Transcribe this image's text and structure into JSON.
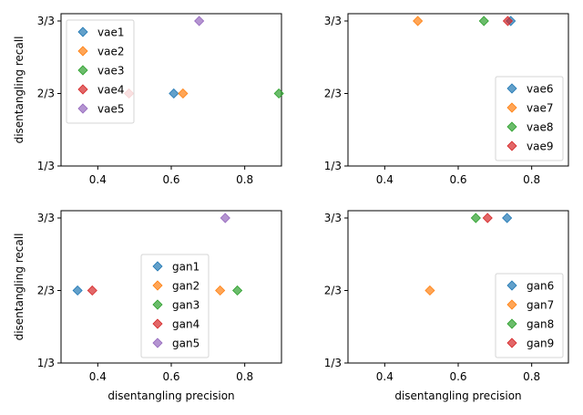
{
  "chart_data": [
    {
      "type": "scatter",
      "xlabel": "",
      "ylabel": "disentangling recall",
      "xlim": [
        0.3,
        0.9
      ],
      "ylim": [
        0.3333,
        1.0
      ],
      "xticks": [
        0.4,
        0.6,
        0.8
      ],
      "xtick_labels": [
        "0.4",
        "0.6",
        "0.8"
      ],
      "yticks": [
        0.3333,
        0.6667,
        1.0
      ],
      "ytick_labels": [
        "1/3",
        "2/3",
        "3/3"
      ],
      "legend_position": "upper-left",
      "series": [
        {
          "name": "vae1",
          "color": "#1f77b4",
          "x": [
            0.607
          ],
          "y": [
            0.6667
          ]
        },
        {
          "name": "vae2",
          "color": "#ff7f0e",
          "x": [
            0.632
          ],
          "y": [
            0.6667
          ]
        },
        {
          "name": "vae3",
          "color": "#2ca02c",
          "x": [
            0.893
          ],
          "y": [
            0.6667
          ]
        },
        {
          "name": "vae4",
          "color": "#d62728",
          "x": [
            0.485
          ],
          "y": [
            0.6667
          ]
        },
        {
          "name": "vae5",
          "color": "#9467bd",
          "x": [
            0.676
          ],
          "y": [
            1.0
          ]
        }
      ]
    },
    {
      "type": "scatter",
      "xlabel": "",
      "ylabel": "",
      "xlim": [
        0.3,
        0.9
      ],
      "ylim": [
        0.3333,
        1.0
      ],
      "xticks": [
        0.4,
        0.6,
        0.8
      ],
      "xtick_labels": [
        "0.4",
        "0.6",
        "0.8"
      ],
      "yticks": [
        0.3333,
        0.6667,
        1.0
      ],
      "ytick_labels": [
        "1/3",
        "2/3",
        "3/3"
      ],
      "legend_position": "lower-right",
      "series": [
        {
          "name": "vae6",
          "color": "#1f77b4",
          "x": [
            0.743
          ],
          "y": [
            1.0
          ]
        },
        {
          "name": "vae7",
          "color": "#ff7f0e",
          "x": [
            0.49
          ],
          "y": [
            1.0
          ]
        },
        {
          "name": "vae8",
          "color": "#2ca02c",
          "x": [
            0.67
          ],
          "y": [
            1.0
          ]
        },
        {
          "name": "vae9",
          "color": "#d62728",
          "x": [
            0.735
          ],
          "y": [
            1.0
          ]
        }
      ]
    },
    {
      "type": "scatter",
      "xlabel": "disentangling precision",
      "ylabel": "disentangling recall",
      "xlim": [
        0.3,
        0.9
      ],
      "ylim": [
        0.3333,
        1.0
      ],
      "xticks": [
        0.4,
        0.6,
        0.8
      ],
      "xtick_labels": [
        "0.4",
        "0.6",
        "0.8"
      ],
      "yticks": [
        0.3333,
        0.6667,
        1.0
      ],
      "ytick_labels": [
        "1/3",
        "2/3",
        "3/3"
      ],
      "legend_position": "lower-center",
      "series": [
        {
          "name": "gan1",
          "color": "#1f77b4",
          "x": [
            0.345
          ],
          "y": [
            0.6667
          ]
        },
        {
          "name": "gan2",
          "color": "#ff7f0e",
          "x": [
            0.733
          ],
          "y": [
            0.6667
          ]
        },
        {
          "name": "gan3",
          "color": "#2ca02c",
          "x": [
            0.78
          ],
          "y": [
            0.6667
          ]
        },
        {
          "name": "gan4",
          "color": "#d62728",
          "x": [
            0.385
          ],
          "y": [
            0.6667
          ]
        },
        {
          "name": "gan5",
          "color": "#9467bd",
          "x": [
            0.747
          ],
          "y": [
            1.0
          ]
        }
      ]
    },
    {
      "type": "scatter",
      "xlabel": "disentangling precision",
      "ylabel": "",
      "xlim": [
        0.3,
        0.9
      ],
      "ylim": [
        0.3333,
        1.0
      ],
      "xticks": [
        0.4,
        0.6,
        0.8
      ],
      "xtick_labels": [
        "0.4",
        "0.6",
        "0.8"
      ],
      "yticks": [
        0.3333,
        0.6667,
        1.0
      ],
      "ytick_labels": [
        "1/3",
        "2/3",
        "3/3"
      ],
      "legend_position": "lower-right",
      "series": [
        {
          "name": "gan6",
          "color": "#1f77b4",
          "x": [
            0.733
          ],
          "y": [
            1.0
          ]
        },
        {
          "name": "gan7",
          "color": "#ff7f0e",
          "x": [
            0.523
          ],
          "y": [
            0.6667
          ]
        },
        {
          "name": "gan8",
          "color": "#2ca02c",
          "x": [
            0.648
          ],
          "y": [
            1.0
          ]
        },
        {
          "name": "gan9",
          "color": "#d62728",
          "x": [
            0.68
          ],
          "y": [
            1.0
          ]
        }
      ]
    }
  ]
}
